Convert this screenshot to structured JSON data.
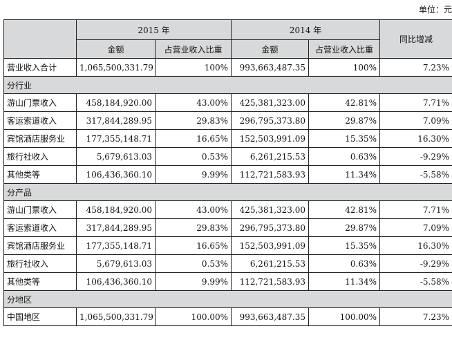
{
  "unit_label": "单位：元",
  "header": {
    "year1": "2015 年",
    "year2": "2014 年",
    "yoy": "同比增减",
    "amount": "金额",
    "share": "占营业收入比重"
  },
  "total": {
    "label": "营业收入合计",
    "amt2015": "1,065,500,331.79",
    "share2015": "100%",
    "amt2014": "993,663,487.35",
    "share2014": "100%",
    "yoy": "7.23%"
  },
  "sections": [
    {
      "title": "分行业",
      "rows": [
        {
          "label": "游山门票收入",
          "amt2015": "458,184,920.00",
          "share2015": "43.00%",
          "amt2014": "425,381,323.00",
          "share2014": "42.81%",
          "yoy": "7.71%"
        },
        {
          "label": "客运索道收入",
          "amt2015": "317,844,289.95",
          "share2015": "29.83%",
          "amt2014": "296,795,373.80",
          "share2014": "29.87%",
          "yoy": "7.09%"
        },
        {
          "label": "宾馆酒店服务业",
          "amt2015": "177,355,148.71",
          "share2015": "16.65%",
          "amt2014": "152,503,991.09",
          "share2014": "15.35%",
          "yoy": "16.30%"
        },
        {
          "label": "旅行社收入",
          "amt2015": "5,679,613.03",
          "share2015": "0.53%",
          "amt2014": "6,261,215.53",
          "share2014": "0.63%",
          "yoy": "-9.29%"
        },
        {
          "label": "其他类等",
          "amt2015": "106,436,360.10",
          "share2015": "9.99%",
          "amt2014": "112,721,583.93",
          "share2014": "11.34%",
          "yoy": "-5.58%"
        }
      ]
    },
    {
      "title": "分产品",
      "rows": [
        {
          "label": "游山门票收入",
          "amt2015": "458,184,920.00",
          "share2015": "43.00%",
          "amt2014": "425,381,323.00",
          "share2014": "42.81%",
          "yoy": "7.71%"
        },
        {
          "label": "客运索道收入",
          "amt2015": "317,844,289.95",
          "share2015": "29.83%",
          "amt2014": "296,795,373.80",
          "share2014": "29.87%",
          "yoy": "7.09%"
        },
        {
          "label": "宾馆酒店服务业",
          "amt2015": "177,355,148.71",
          "share2015": "16.65%",
          "amt2014": "152,503,991.09",
          "share2014": "15.35%",
          "yoy": "16.30%"
        },
        {
          "label": "旅行社收入",
          "amt2015": "5,679,613.03",
          "share2015": "0.53%",
          "amt2014": "6,261,215.53",
          "share2014": "0.63%",
          "yoy": "-9.29%"
        },
        {
          "label": "其他类等",
          "amt2015": "106,436,360.10",
          "share2015": "9.99%",
          "amt2014": "112,721,583.93",
          "share2014": "11.34%",
          "yoy": "-5.58%"
        }
      ]
    },
    {
      "title": "分地区",
      "rows": [
        {
          "label": "中国地区",
          "amt2015": "1,065,500,331.79",
          "share2015": "100.00%",
          "amt2014": "993,663,487.35",
          "share2014": "100.00%",
          "yoy": "7.23%"
        }
      ]
    }
  ]
}
